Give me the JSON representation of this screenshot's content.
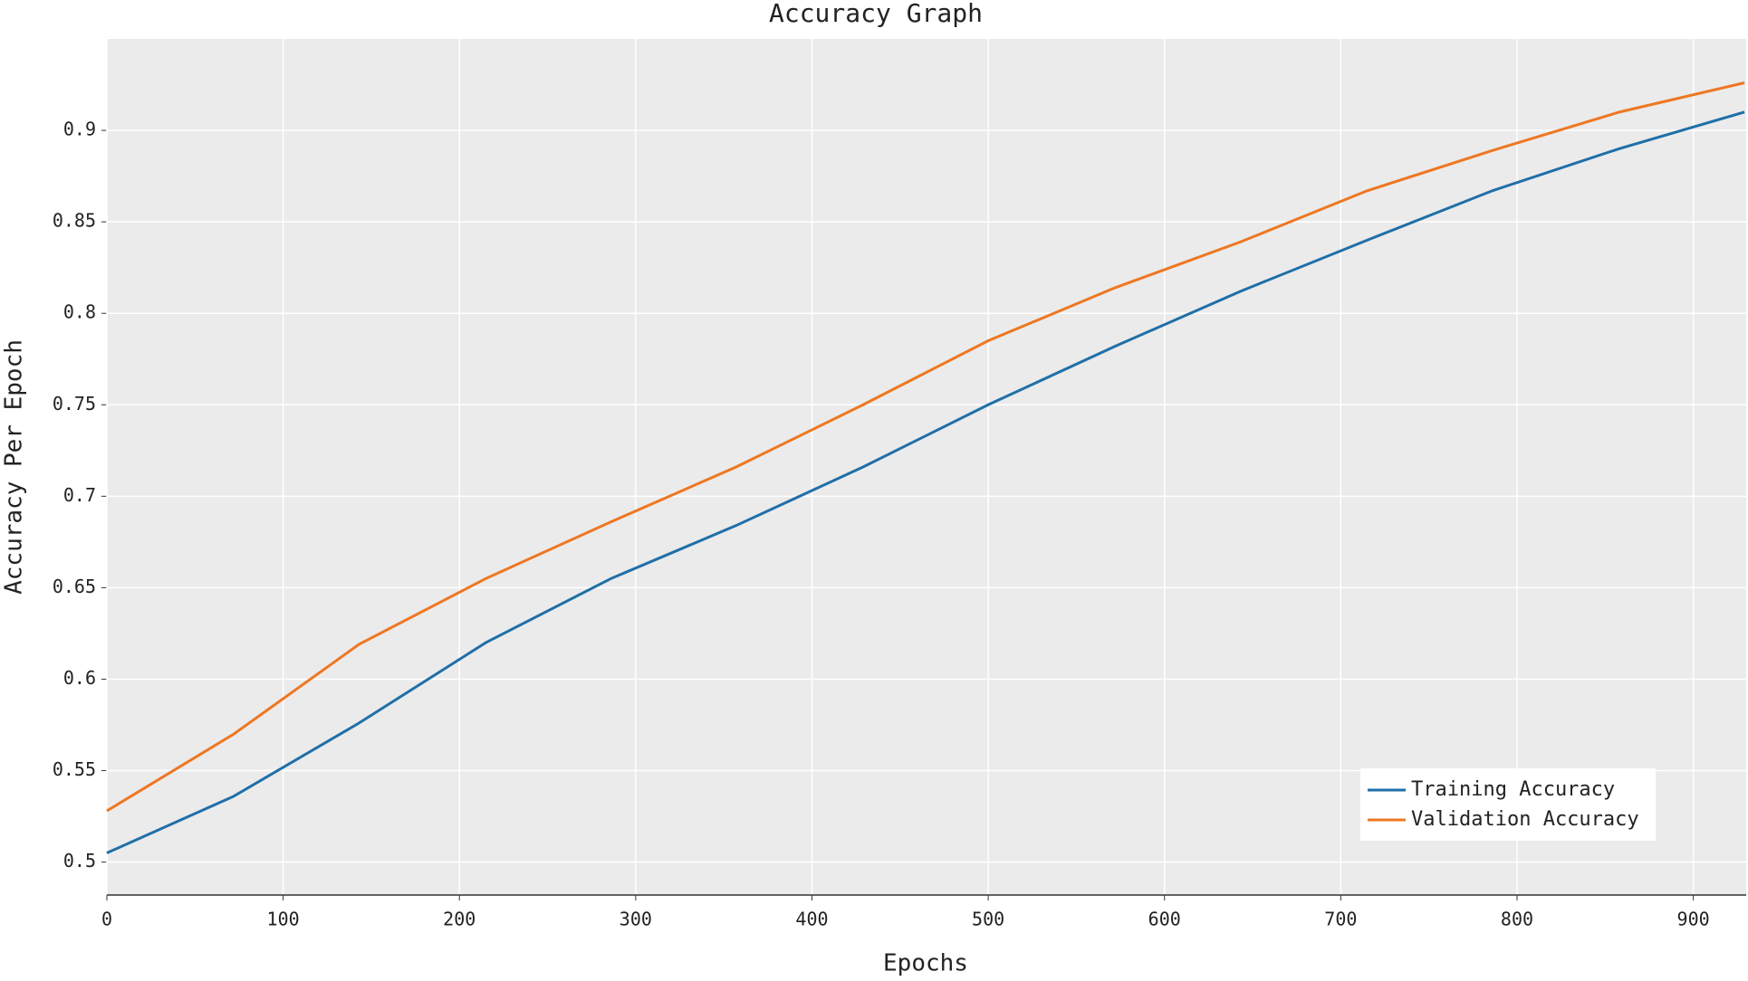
{
  "chart_data": {
    "type": "line",
    "title": "Accuracy Graph",
    "x_label": "Epochs",
    "y_label": "Accuracy Per Epoch",
    "x": [
      0,
      72,
      143,
      215,
      286,
      357,
      429,
      500,
      572,
      643,
      715,
      786,
      858,
      929
    ],
    "series": [
      {
        "name": "Training Accuracy",
        "color": "#1f6fa8",
        "values": [
          0.505,
          0.536,
          0.576,
          0.62,
          0.655,
          0.684,
          0.716,
          0.75,
          0.782,
          0.812,
          0.84,
          0.867,
          0.89,
          0.91
        ]
      },
      {
        "name": "Validation Accuracy",
        "color": "#ee7722",
        "values": [
          0.528,
          0.57,
          0.619,
          0.655,
          0.686,
          0.716,
          0.75,
          0.785,
          0.814,
          0.839,
          0.867,
          0.889,
          0.91,
          0.926
        ]
      }
    ],
    "xlim": [
      0,
      930
    ],
    "ylim": [
      0.482,
      0.95
    ],
    "xticks": [
      0,
      100,
      200,
      300,
      400,
      500,
      600,
      700,
      800,
      900
    ],
    "yticks": [
      0.5,
      0.55,
      0.6,
      0.65,
      0.7,
      0.75,
      0.8,
      0.85,
      0.9
    ],
    "grid": true,
    "legend": "lower right"
  }
}
